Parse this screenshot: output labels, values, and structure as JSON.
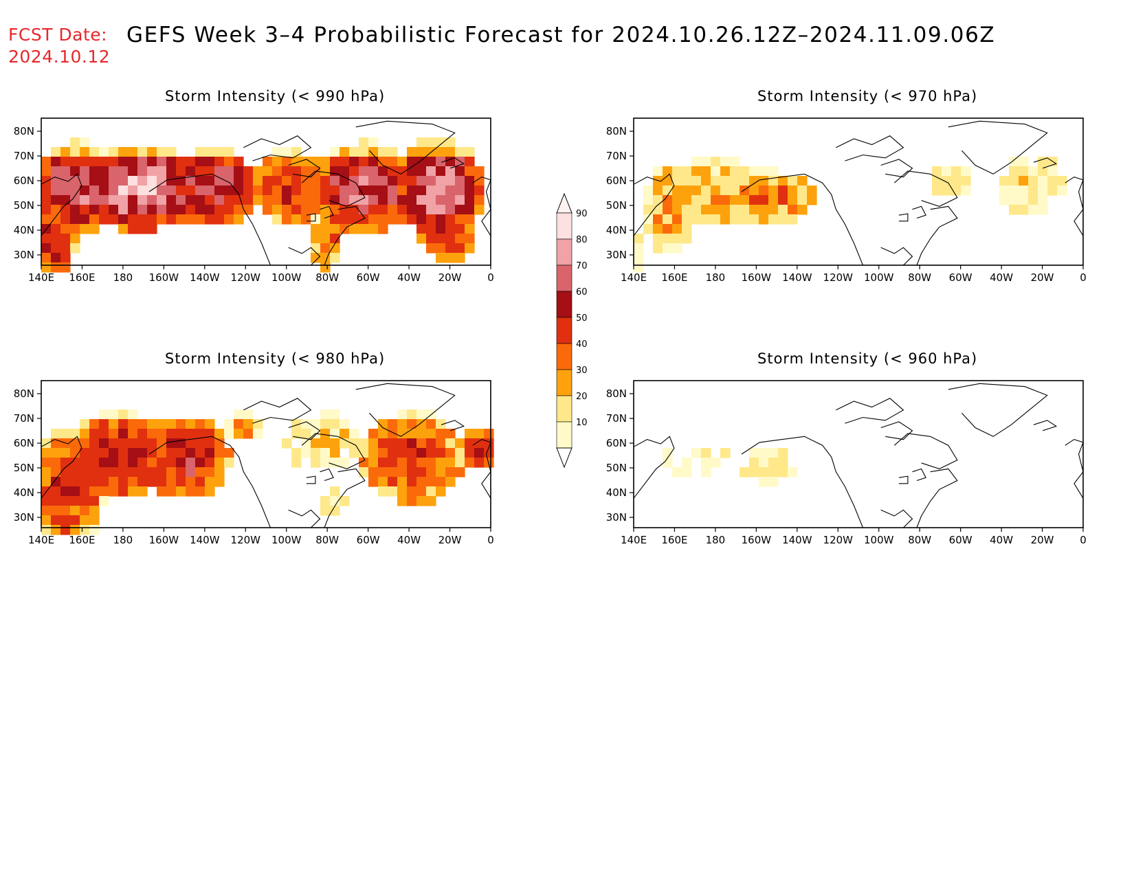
{
  "header": {
    "fcst_label": "FCST Date:",
    "fcst_date": "2024.10.12",
    "title": "GEFS Week 3–4 Probabilistic Forecast for 2024.10.26.12Z–2024.11.09.06Z"
  },
  "axes": {
    "lon_labels": [
      "140E",
      "160E",
      "180",
      "160W",
      "140W",
      "120W",
      "100W",
      "80W",
      "60W",
      "40W",
      "20W",
      "0"
    ],
    "lat_labels": [
      "80N",
      "70N",
      "60N",
      "50N",
      "40N",
      "30N"
    ]
  },
  "colorbar": {
    "levels": [
      "90",
      "80",
      "70",
      "60",
      "50",
      "40",
      "30",
      "20",
      "10"
    ],
    "colors": [
      "#fde0e0",
      "#f0a2a6",
      "#d9646b",
      "#a50f15",
      "#e03010",
      "#fb6a0a",
      "#fda20c",
      "#fee88a",
      "#fffac8"
    ]
  },
  "panels": [
    {
      "id": "p990",
      "title": "Storm Intensity (< 990 hPa)"
    },
    {
      "id": "p970",
      "title": "Storm Intensity (< 970 hPa)"
    },
    {
      "id": "p980",
      "title": "Storm Intensity (< 980 hPa)"
    },
    {
      "id": "p960",
      "title": "Storm Intensity (< 960 hPa)"
    }
  ]
}
